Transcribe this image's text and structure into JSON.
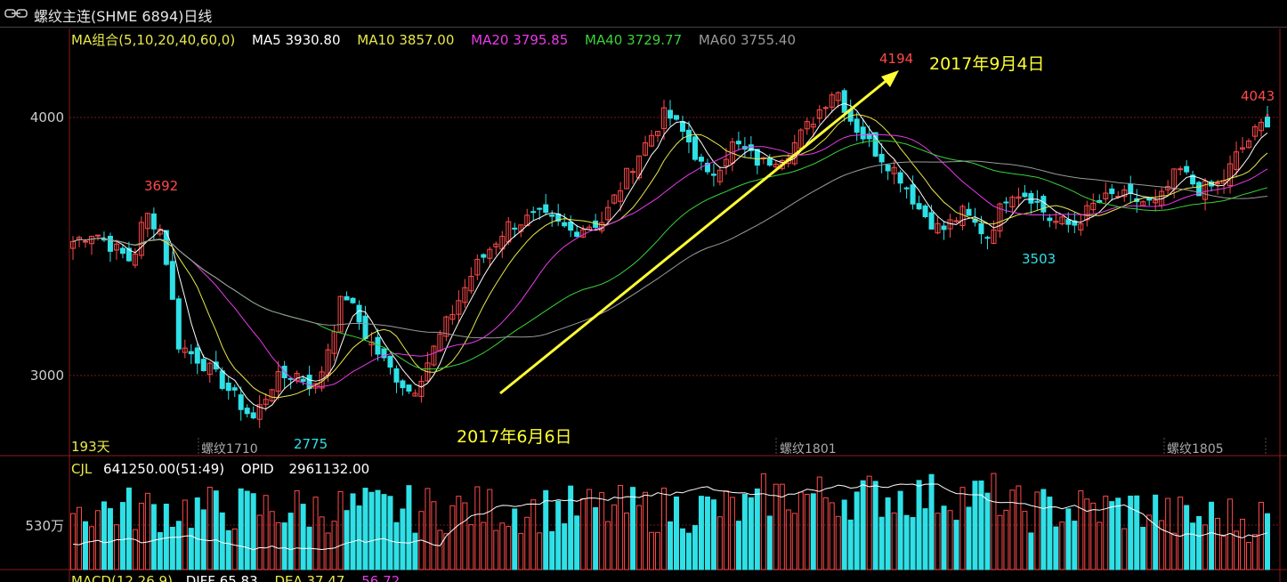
{
  "window": {
    "title": "螺纹主连(SHME 6894)日线",
    "icon": "link-icon"
  },
  "ma_legend": {
    "group": "MA组合(5,10,20,40,60,0)",
    "ma5": "MA5 3930.80",
    "ma10": "MA10 3857.00",
    "ma20": "MA20 3795.85",
    "ma40": "MA40 3729.77",
    "ma60": "MA60 3755.40"
  },
  "colors": {
    "up": "#ff4a4a",
    "down": "#2fe0e6",
    "ma5": "#ffffff",
    "ma10": "#e8e84a",
    "ma20": "#e83ae8",
    "ma40": "#3ad23a",
    "ma60": "#9a9a9a",
    "annotation": "#ffff33",
    "grid": "#7a1a1a"
  },
  "price_axis": {
    "label_4000": "4000",
    "label_3000": "3000"
  },
  "price_marks": {
    "high_3692": "3692",
    "low_2775": "2775",
    "high_4194": "4194",
    "low_3503": "3503",
    "high_4043": "4043"
  },
  "annotations": {
    "start_date": "2017年6月6日",
    "end_date": "2017年9月4日"
  },
  "period_count": "193天",
  "contracts": {
    "c1710": "螺纹1710",
    "c1801": "螺纹1801",
    "c1805": "螺纹1805"
  },
  "volume_panel": {
    "cjl_label": "CJL",
    "cjl_value": "641250.00(51:49)",
    "opid_label": "OPID",
    "opid_value": "2961132.00",
    "axis_label": "530万"
  },
  "macd_panel": {
    "label": "MACD(12,26,9)",
    "diff": "DIFF  65.83",
    "dea": "DEA  37.47",
    "macd": "56.72"
  },
  "chart_data": {
    "type": "candlestick",
    "ylim": [
      2700,
      4300
    ],
    "key_points": [
      {
        "label": "3692",
        "value": 3692
      },
      {
        "label": "2775",
        "value": 2775
      },
      {
        "label": "2017年6月6日",
        "value": 2930
      },
      {
        "label": "4194",
        "value": 4194
      },
      {
        "label": "2017年9月4日",
        "value": 4194
      },
      {
        "label": "3503",
        "value": 3503
      },
      {
        "label": "4043",
        "value": 4043
      }
    ]
  }
}
